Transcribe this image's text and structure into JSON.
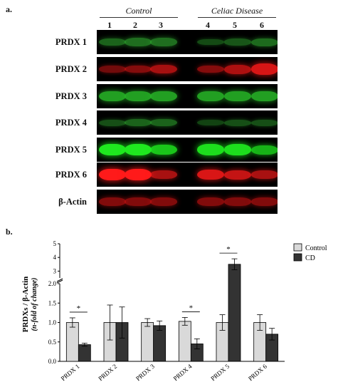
{
  "panel_a": {
    "label": "a.",
    "groups": [
      {
        "label": "Control",
        "lanes": [
          "1",
          "2",
          "3"
        ]
      },
      {
        "label": "Celiac Disease",
        "lanes": [
          "4",
          "5",
          "6"
        ]
      }
    ],
    "rows": [
      {
        "label": "PRDX 1",
        "color": "#2fa82f",
        "intensity": [
          0.45,
          0.55,
          0.55,
          0.25,
          0.35,
          0.5
        ]
      },
      {
        "label": "PRDX 2",
        "color": "#e01616",
        "intensity": [
          0.35,
          0.45,
          0.65,
          0.45,
          0.7,
          0.95
        ]
      },
      {
        "label": "PRDX 3",
        "color": "#27b327",
        "intensity": [
          0.85,
          0.85,
          0.85,
          0.85,
          0.85,
          0.85
        ]
      },
      {
        "label": "PRDX 4",
        "color": "#2fa82f",
        "intensity": [
          0.3,
          0.45,
          0.45,
          0.2,
          0.3,
          0.3
        ]
      },
      {
        "label": "PRDX 5",
        "color": "#1fe81f",
        "intensity": [
          1.0,
          1.0,
          0.8,
          0.95,
          0.95,
          0.7
        ]
      },
      {
        "label": "PRDX 6",
        "color": "#ff1a1a",
        "intensity": [
          1.0,
          1.0,
          0.55,
          0.8,
          0.7,
          0.55
        ]
      },
      {
        "label": "β-Actin",
        "color": "#c41212",
        "intensity": [
          0.55,
          0.55,
          0.55,
          0.55,
          0.55,
          0.55
        ]
      }
    ]
  },
  "panel_b": {
    "label": "b.",
    "chart_data": {
      "type": "bar",
      "ylabel_main": "PRDXs / β-Actin",
      "ylabel_sub": "(n-fold of change)",
      "categories": [
        "PRDX 1",
        "PRDX 2",
        "PRDX 3",
        "PRDX 4",
        "PRDX 5",
        "PRDX 6"
      ],
      "series": [
        {
          "name": "Control",
          "color": "#d9d9d9",
          "values": [
            1.0,
            1.0,
            1.0,
            1.03,
            1.0,
            1.0
          ],
          "errors": [
            0.12,
            0.45,
            0.1,
            0.1,
            0.2,
            0.2
          ]
        },
        {
          "name": "CD",
          "color": "#333333",
          "values": [
            0.43,
            1.0,
            0.92,
            0.45,
            3.5,
            0.7
          ],
          "errors": [
            0.04,
            0.4,
            0.12,
            0.13,
            0.4,
            0.15
          ]
        }
      ],
      "ylim_lower": [
        0,
        2.0
      ],
      "yticks_lower": [
        "0.0",
        "0.5",
        "1.0",
        "1.5",
        "2.0"
      ],
      "ylim_upper": [
        2.5,
        5
      ],
      "yticks_upper": [
        "3",
        "4",
        "5"
      ],
      "legend_position": "top-right",
      "significance": [
        {
          "category_index": 0,
          "label": "*"
        },
        {
          "category_index": 3,
          "label": "*"
        },
        {
          "category_index": 4,
          "label": "*"
        }
      ]
    }
  }
}
